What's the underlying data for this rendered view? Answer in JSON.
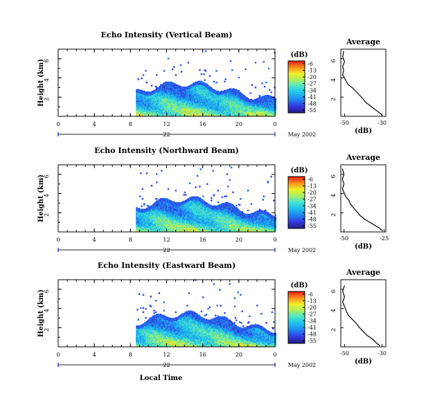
{
  "chart_data": [
    {
      "type": "heatmap",
      "title": "Echo Intensity (Vertical Beam)",
      "ylabel": "Height (km)",
      "xlim": [
        0,
        24
      ],
      "ylim": [
        0,
        7
      ],
      "xticks": [
        "0",
        "4",
        "8",
        "12",
        "16",
        "20",
        "0"
      ],
      "yticks": [
        "2",
        "4",
        "6"
      ],
      "date_label": "22",
      "month_label": "May 2002",
      "echo_start_hour": 8.6,
      "colorbar": {
        "unit": "(dB)",
        "ticks": [
          "-6",
          "-13",
          "-20",
          "-27",
          "-34",
          "-41",
          "-48",
          "-55"
        ]
      },
      "average": {
        "title": "Average",
        "xlabel": "(dB)",
        "xticks": [
          "-50",
          "-30"
        ],
        "xlim": [
          -52,
          -28
        ],
        "ylim": [
          0,
          7
        ],
        "yticks": [
          "2",
          "4",
          "6"
        ],
        "profile": [
          [
            0.1,
            -30
          ],
          [
            0.3,
            -31
          ],
          [
            0.6,
            -33
          ],
          [
            0.9,
            -35
          ],
          [
            1.2,
            -37
          ],
          [
            1.5,
            -39
          ],
          [
            1.8,
            -40
          ],
          [
            2.2,
            -42
          ],
          [
            2.6,
            -44
          ],
          [
            3.0,
            -46
          ],
          [
            3.3,
            -48
          ],
          [
            3.6,
            -49
          ],
          [
            4.0,
            -50
          ],
          [
            4.3,
            -51
          ],
          [
            4.8,
            -50.5
          ],
          [
            5.2,
            -51
          ],
          [
            5.7,
            -50
          ],
          [
            6.2,
            -51
          ],
          [
            6.8,
            -50.5
          ]
        ]
      }
    },
    {
      "type": "heatmap",
      "title": "Echo Intensity (Northward Beam)",
      "ylabel": "Height (km)",
      "xlim": [
        0,
        24
      ],
      "ylim": [
        0,
        7
      ],
      "xticks": [
        "0",
        "4",
        "8",
        "12",
        "16",
        "20",
        "0"
      ],
      "yticks": [
        "2",
        "4",
        "6"
      ],
      "date_label": "22",
      "month_label": "May 2002",
      "echo_start_hour": 8.6,
      "colorbar": {
        "unit": "(dB)",
        "ticks": [
          "-6",
          "-13",
          "-20",
          "-27",
          "-34",
          "-41",
          "-48",
          "-55"
        ]
      },
      "average": {
        "title": "Average",
        "xlabel": "(dB)",
        "xticks": [
          "-50",
          "-25"
        ],
        "xlim": [
          -52,
          -24
        ],
        "ylim": [
          0,
          7
        ],
        "yticks": [
          "2",
          "4",
          "6"
        ],
        "profile": [
          [
            0.1,
            -26
          ],
          [
            0.4,
            -28
          ],
          [
            0.7,
            -31
          ],
          [
            1.0,
            -34
          ],
          [
            1.3,
            -37
          ],
          [
            1.7,
            -40
          ],
          [
            2.1,
            -42
          ],
          [
            2.5,
            -44
          ],
          [
            2.9,
            -46
          ],
          [
            3.3,
            -47
          ],
          [
            3.7,
            -49
          ],
          [
            4.1,
            -50
          ],
          [
            4.5,
            -51
          ],
          [
            5.0,
            -50
          ],
          [
            5.5,
            -51
          ],
          [
            6.0,
            -50
          ],
          [
            6.6,
            -51
          ]
        ]
      }
    },
    {
      "type": "heatmap",
      "title": "Echo Intensity (Eastward Beam)",
      "ylabel": "Height (km)",
      "xlabel": "Local Time",
      "xlim": [
        0,
        24
      ],
      "ylim": [
        0,
        7
      ],
      "xticks": [
        "0",
        "4",
        "8",
        "12",
        "16",
        "20",
        "0"
      ],
      "yticks": [
        "2",
        "4",
        "6"
      ],
      "date_label": "22",
      "month_label": "May 2002",
      "echo_start_hour": 8.6,
      "colorbar": {
        "unit": "(dB)",
        "ticks": [
          "-6",
          "-13",
          "-20",
          "-27",
          "-34",
          "-41",
          "-48",
          "-55"
        ]
      },
      "average": {
        "title": "Average",
        "xlabel": "(dB)",
        "xticks": [
          "-50",
          "-30"
        ],
        "xlim": [
          -52,
          -28
        ],
        "ylim": [
          0,
          7
        ],
        "yticks": [
          "2",
          "4",
          "6"
        ],
        "profile": [
          [
            0.1,
            -31
          ],
          [
            0.4,
            -33
          ],
          [
            0.8,
            -35
          ],
          [
            1.2,
            -38
          ],
          [
            1.6,
            -40
          ],
          [
            2.0,
            -42
          ],
          [
            2.5,
            -44
          ],
          [
            2.9,
            -46
          ],
          [
            3.3,
            -48
          ],
          [
            3.7,
            -49
          ],
          [
            4.2,
            -50
          ],
          [
            4.7,
            -51
          ],
          [
            5.2,
            -50
          ],
          [
            5.8,
            -51
          ],
          [
            6.4,
            -50
          ]
        ]
      }
    }
  ]
}
